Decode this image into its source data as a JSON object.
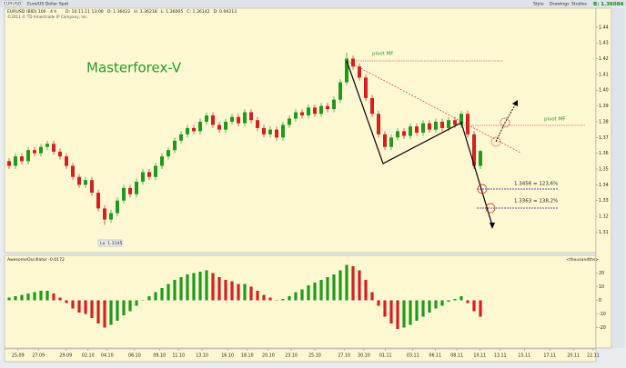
{
  "toolbar": {
    "symbol": "EURUSD",
    "description": "Euro/US Dollar Spot",
    "buttons": [
      "Style",
      "Drawings",
      "Studies"
    ],
    "bid": "B: 1.36084"
  },
  "chart_data": [
    {
      "type": "candlestick",
      "title": "EURUSD (BID) 100 · 4 h",
      "info": [
        "D: 10.11.11 13:00",
        "O: 1.36022",
        "H: 1.36218",
        "L: 1.36005",
        "C: 1.36142",
        "D: 0.00213"
      ],
      "copyright": "©2011 © TD Ameritrade IP Company, Inc.",
      "watermark": "Masterforex-V",
      "low_label": "Lo: 1.3145",
      "annotations": [
        "pivot MF",
        "pivot MF",
        "1.3456 = 123,6%",
        "1.3363 = 138,2%"
      ],
      "up_color": "#1f9a1f",
      "down_color": "#d42020",
      "candles": [
        [
          1.355,
          1.357,
          1.35,
          1.352
        ],
        [
          1.352,
          1.36,
          1.35,
          1.358
        ],
        [
          1.358,
          1.36,
          1.353,
          1.355
        ],
        [
          1.355,
          1.364,
          1.353,
          1.362
        ],
        [
          1.362,
          1.364,
          1.358,
          1.36
        ],
        [
          1.36,
          1.366,
          1.358,
          1.364
        ],
        [
          1.364,
          1.368,
          1.362,
          1.366
        ],
        [
          1.366,
          1.368,
          1.359,
          1.361
        ],
        [
          1.361,
          1.363,
          1.356,
          1.358
        ],
        [
          1.358,
          1.36,
          1.35,
          1.352
        ],
        [
          1.352,
          1.354,
          1.343,
          1.345
        ],
        [
          1.345,
          1.347,
          1.338,
          1.34
        ],
        [
          1.34,
          1.345,
          1.338,
          1.343
        ],
        [
          1.343,
          1.345,
          1.333,
          1.335
        ],
        [
          1.335,
          1.337,
          1.323,
          1.325
        ],
        [
          1.325,
          1.327,
          1.3145,
          1.318
        ],
        [
          1.318,
          1.324,
          1.316,
          1.322
        ],
        [
          1.322,
          1.332,
          1.32,
          1.33
        ],
        [
          1.33,
          1.34,
          1.328,
          1.338
        ],
        [
          1.338,
          1.34,
          1.332,
          1.334
        ],
        [
          1.334,
          1.344,
          1.332,
          1.342
        ],
        [
          1.342,
          1.35,
          1.34,
          1.348
        ],
        [
          1.348,
          1.35,
          1.343,
          1.345
        ],
        [
          1.345,
          1.354,
          1.343,
          1.352
        ],
        [
          1.352,
          1.36,
          1.35,
          1.358
        ],
        [
          1.358,
          1.364,
          1.356,
          1.362
        ],
        [
          1.362,
          1.37,
          1.36,
          1.368
        ],
        [
          1.368,
          1.374,
          1.366,
          1.372
        ],
        [
          1.372,
          1.378,
          1.37,
          1.376
        ],
        [
          1.376,
          1.378,
          1.372,
          1.374
        ],
        [
          1.374,
          1.382,
          1.372,
          1.38
        ],
        [
          1.38,
          1.386,
          1.378,
          1.384
        ],
        [
          1.384,
          1.386,
          1.376,
          1.378
        ],
        [
          1.378,
          1.38,
          1.373,
          1.375
        ],
        [
          1.375,
          1.382,
          1.373,
          1.38
        ],
        [
          1.38,
          1.385,
          1.378,
          1.383
        ],
        [
          1.383,
          1.385,
          1.377,
          1.379
        ],
        [
          1.379,
          1.388,
          1.377,
          1.386
        ],
        [
          1.386,
          1.388,
          1.379,
          1.381
        ],
        [
          1.381,
          1.383,
          1.374,
          1.376
        ],
        [
          1.376,
          1.378,
          1.37,
          1.372
        ],
        [
          1.372,
          1.377,
          1.37,
          1.375
        ],
        [
          1.375,
          1.377,
          1.368,
          1.37
        ],
        [
          1.37,
          1.38,
          1.368,
          1.378
        ],
        [
          1.378,
          1.384,
          1.376,
          1.382
        ],
        [
          1.382,
          1.388,
          1.38,
          1.386
        ],
        [
          1.386,
          1.388,
          1.382,
          1.384
        ],
        [
          1.384,
          1.391,
          1.382,
          1.389
        ],
        [
          1.389,
          1.391,
          1.383,
          1.385
        ],
        [
          1.385,
          1.392,
          1.383,
          1.39
        ],
        [
          1.39,
          1.392,
          1.386,
          1.388
        ],
        [
          1.388,
          1.396,
          1.386,
          1.394
        ],
        [
          1.394,
          1.407,
          1.392,
          1.405
        ],
        [
          1.405,
          1.424,
          1.403,
          1.42
        ],
        [
          1.42,
          1.422,
          1.413,
          1.415
        ],
        [
          1.415,
          1.417,
          1.406,
          1.408
        ],
        [
          1.408,
          1.41,
          1.393,
          1.395
        ],
        [
          1.395,
          1.397,
          1.383,
          1.385
        ],
        [
          1.385,
          1.387,
          1.37,
          1.372
        ],
        [
          1.372,
          1.374,
          1.362,
          1.364
        ],
        [
          1.364,
          1.372,
          1.362,
          1.37
        ],
        [
          1.37,
          1.376,
          1.368,
          1.374
        ],
        [
          1.374,
          1.376,
          1.369,
          1.371
        ],
        [
          1.371,
          1.379,
          1.369,
          1.377
        ],
        [
          1.377,
          1.379,
          1.371,
          1.373
        ],
        [
          1.373,
          1.381,
          1.371,
          1.379
        ],
        [
          1.379,
          1.381,
          1.373,
          1.375
        ],
        [
          1.375,
          1.382,
          1.373,
          1.38
        ],
        [
          1.38,
          1.382,
          1.374,
          1.376
        ],
        [
          1.376,
          1.383,
          1.374,
          1.381
        ],
        [
          1.381,
          1.383,
          1.376,
          1.378
        ],
        [
          1.378,
          1.387,
          1.376,
          1.385
        ],
        [
          1.385,
          1.387,
          1.37,
          1.372
        ],
        [
          1.372,
          1.374,
          1.35,
          1.352
        ],
        [
          1.352,
          1.3622,
          1.35,
          1.3614
        ]
      ],
      "xlim": [
        -0.5,
        92.5
      ],
      "xticks": [
        {
          "value": 1.4,
          "label": "25.09"
        },
        {
          "value": 4.6,
          "label": "27.09"
        },
        {
          "value": 8.9,
          "label": "29.09"
        },
        {
          "value": 12.4,
          "label": "02.10"
        },
        {
          "value": 15.4,
          "label": "04.10"
        },
        {
          "value": 19.7,
          "label": "06.10"
        },
        {
          "value": 23.6,
          "label": "09.10"
        },
        {
          "value": 26.6,
          "label": "11.10"
        },
        {
          "value": 30.3,
          "label": "13.10"
        },
        {
          "value": 34.3,
          "label": "16.10"
        },
        {
          "value": 37.4,
          "label": "18.10"
        },
        {
          "value": 40.7,
          "label": "20.10"
        },
        {
          "value": 44.3,
          "label": "23.10"
        },
        {
          "value": 48,
          "label": "25.10"
        },
        {
          "value": 52.6,
          "label": "27.10"
        },
        {
          "value": 55.7,
          "label": "30.10"
        },
        {
          "value": 59.1,
          "label": "01.11"
        },
        {
          "value": 63.4,
          "label": "03.11"
        },
        {
          "value": 66.9,
          "label": "06.11"
        },
        {
          "value": 70.3,
          "label": "08.11"
        },
        {
          "value": 73.9,
          "label": "10.11"
        },
        {
          "value": 77.1,
          "label": "13.11"
        },
        {
          "value": 80.9,
          "label": "15.11"
        },
        {
          "value": 84.9,
          "label": "17.11"
        },
        {
          "value": 88.6,
          "label": "20.11"
        },
        {
          "value": 91.7,
          "label": "22.11"
        }
      ],
      "ylim": [
        1.297,
        1.452
      ],
      "yticks": [
        1.44,
        1.43,
        1.42,
        1.41,
        {
          "value": 1.4,
          "label": "1.40"
        },
        1.39,
        1.38,
        1.37,
        1.36,
        1.35,
        1.34,
        1.33,
        1.32,
        1.31
      ]
    },
    {
      "type": "bar",
      "title": "AwesomeOscillator -0.0172",
      "unit_label": "<thousandths>",
      "up_color": "#1f9a1f",
      "down_color": "#d42020",
      "values": [
        2,
        3,
        4,
        5,
        6,
        7,
        7,
        5,
        2,
        -2,
        -6,
        -9,
        -10,
        -13,
        -17,
        -20,
        -18,
        -15,
        -11,
        -8,
        -4,
        0,
        3,
        6,
        9,
        12,
        15,
        17,
        19,
        20,
        21,
        22,
        20,
        17,
        15,
        14,
        12,
        12,
        10,
        7,
        4,
        2,
        0,
        1,
        3,
        6,
        8,
        11,
        13,
        15,
        17,
        19,
        22,
        26,
        25,
        22,
        15,
        6,
        -4,
        -12,
        -17,
        -21,
        -20,
        -18,
        -15,
        -12,
        -9,
        -6,
        -4,
        -1,
        1,
        3,
        -2,
        -8,
        -12
      ],
      "ylim": [
        -35,
        33
      ],
      "yticks": [
        20,
        10,
        0,
        -10,
        -20
      ]
    }
  ]
}
